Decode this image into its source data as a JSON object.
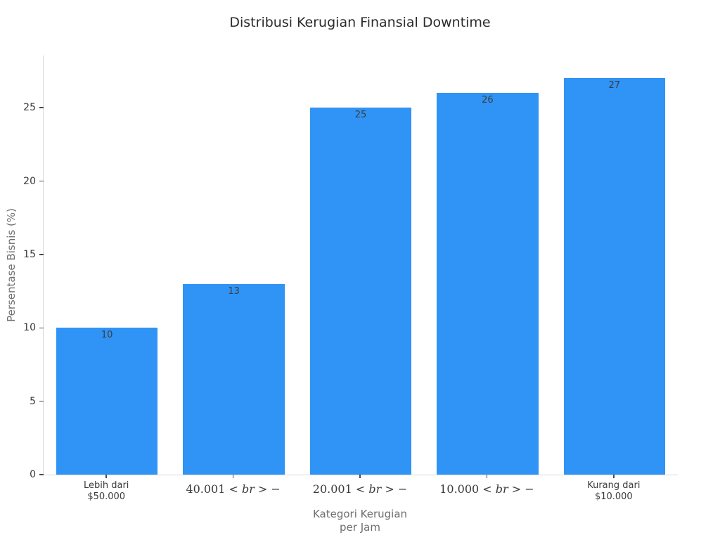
{
  "chart_data": {
    "type": "bar",
    "title": "Distribusi Kerugian Finansial Downtime",
    "ylabel": "Persentase Bisnis (%)",
    "xlabel_line1": "Kategori Kerugian",
    "xlabel_line2": "per Jam",
    "categories": [
      "Lebih dari $50.000",
      "40.001 < br > −",
      "20.001 < br > −",
      "10.000 < br > −",
      "Kurang dari $10.000"
    ],
    "values": [
      10,
      13,
      25,
      26,
      27
    ],
    "yticks": [
      0,
      5,
      10,
      15,
      20,
      25
    ],
    "ylim": [
      0,
      28.55
    ],
    "grid": false,
    "legend_position": "none",
    "bar_color": "#2f94f5",
    "xticks_display": [
      {
        "style": "plain",
        "line1": "Lebih dari",
        "line2": "$50.000"
      },
      {
        "style": "math",
        "prefix": "40.001 < ",
        "variable": "br",
        "suffix": " > −"
      },
      {
        "style": "math",
        "prefix": "20.001 < ",
        "variable": "br",
        "suffix": " > −"
      },
      {
        "style": "math",
        "prefix": "10.000 < ",
        "variable": "br",
        "suffix": " > −"
      },
      {
        "style": "plain",
        "line1": "Kurang dari",
        "line2": "$10.000"
      }
    ]
  }
}
